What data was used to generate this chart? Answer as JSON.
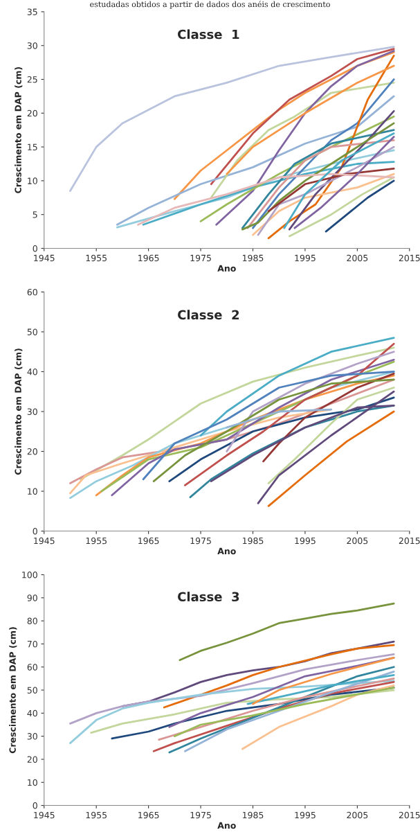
{
  "chart_data": [
    {
      "type": "line",
      "title": "Classe  1",
      "xlabel": "Ano",
      "ylabel": "Crescimento em DAP (cm)",
      "annotations": [
        "estudadas obtidos a partir de dados dos anéis de crescimento"
      ],
      "xlim": [
        1945,
        2015
      ],
      "xticks": [
        1945,
        1955,
        1965,
        1975,
        1985,
        1995,
        2005,
        2015
      ],
      "ylim": [
        0,
        35
      ],
      "yticks": [
        0,
        5,
        10,
        15,
        20,
        25,
        30,
        35
      ],
      "series": [
        {
          "color": "#b9c3de",
          "x": [
            1950,
            1955,
            1960,
            1970,
            1980,
            1990,
            2000,
            2012
          ],
          "values": [
            8.5,
            15,
            18.5,
            22.5,
            24.5,
            27,
            28.3,
            29.8
          ]
        },
        {
          "color": "#f79646",
          "x": [
            1970,
            1975,
            1980,
            1985,
            1990,
            1995,
            2005,
            2012
          ],
          "values": [
            7.3,
            11.5,
            14.5,
            17.5,
            20.5,
            23,
            27,
            29
          ]
        },
        {
          "color": "#c0504d",
          "x": [
            1977,
            1985,
            1992,
            2000,
            2005,
            2012
          ],
          "values": [
            9.5,
            17,
            22,
            25.5,
            28,
            29.5
          ]
        },
        {
          "color": "#95b3d7",
          "x": [
            1959,
            1965,
            1975,
            1985,
            1995,
            2005,
            2012
          ],
          "values": [
            3.5,
            6,
            9.5,
            12,
            15.5,
            18,
            22.5
          ]
        },
        {
          "color": "#93cddd",
          "x": [
            1959,
            1970,
            1980,
            1990,
            2000,
            2012
          ],
          "values": [
            3.1,
            5.5,
            7.5,
            10.5,
            12.5,
            14.5
          ]
        },
        {
          "color": "#4bacc6",
          "x": [
            1964,
            1975,
            1985,
            1995,
            2005,
            2012
          ],
          "values": [
            3.5,
            6.5,
            9,
            11,
            12.5,
            12.8
          ]
        },
        {
          "color": "#c3d69b",
          "x": [
            1977,
            1982,
            1988,
            1993,
            2000,
            2012
          ],
          "values": [
            7.5,
            13,
            17.5,
            19.5,
            23,
            24.5
          ]
        },
        {
          "color": "#8064a2",
          "x": [
            1978,
            1985,
            1990,
            1995,
            2000,
            2005,
            2012
          ],
          "values": [
            3.5,
            8.5,
            14.5,
            20,
            24,
            27,
            29.2
          ]
        },
        {
          "color": "#4f81bd",
          "x": [
            1985,
            1990,
            1995,
            2000,
            2005,
            2012
          ],
          "values": [
            3,
            8,
            12,
            16,
            18.5,
            25
          ]
        },
        {
          "color": "#1f497d",
          "x": [
            1999,
            2003,
            2007,
            2012
          ],
          "values": [
            2.5,
            5,
            7.5,
            10
          ]
        },
        {
          "color": "#9bbb59",
          "x": [
            1975,
            1980,
            1990,
            2000,
            2012
          ],
          "values": [
            4,
            6.5,
            11,
            15,
            19.5
          ]
        },
        {
          "color": "#e46c0a",
          "x": [
            1988,
            1992,
            1997,
            2002,
            2007,
            2012
          ],
          "values": [
            1.5,
            4,
            6.5,
            12,
            22,
            28.5
          ]
        },
        {
          "color": "#fac08f",
          "x": [
            1985,
            1990,
            1995,
            2005,
            2012
          ],
          "values": [
            2,
            5.5,
            7.5,
            9,
            11
          ]
        },
        {
          "color": "#d99694",
          "x": [
            1984,
            1990,
            1995,
            2000,
            2012
          ],
          "values": [
            3,
            9,
            13,
            15,
            16
          ]
        },
        {
          "color": "#31859c",
          "x": [
            1983,
            1988,
            1993,
            2000,
            2012
          ],
          "values": [
            3,
            8,
            12.5,
            15.5,
            17.5
          ]
        },
        {
          "color": "#604a7b",
          "x": [
            1992,
            1997,
            2002,
            2007,
            2012
          ],
          "values": [
            2.8,
            8,
            12,
            16,
            20.3
          ]
        },
        {
          "color": "#77933c",
          "x": [
            1983,
            1986,
            1990,
            1995,
            2005,
            2012
          ],
          "values": [
            2.8,
            3.8,
            7,
            10,
            15,
            18.5
          ]
        },
        {
          "color": "#b3a2c7",
          "x": [
            1986,
            1990,
            1995,
            2005,
            2012
          ],
          "values": [
            2,
            6.5,
            8,
            12,
            15
          ]
        },
        {
          "color": "#953735",
          "x": [
            1988,
            1995,
            2003,
            2012
          ],
          "values": [
            5.5,
            9.5,
            11,
            11.8
          ]
        },
        {
          "color": "#c3d69b",
          "x": [
            1992,
            2000,
            2006,
            2012
          ],
          "values": [
            1.8,
            5,
            8,
            10.5
          ]
        },
        {
          "color": "#e6b9b8",
          "x": [
            1963,
            1970,
            1980,
            1990,
            2000,
            2012
          ],
          "values": [
            3.5,
            6,
            8,
            10.5,
            11,
            10.5
          ]
        },
        {
          "color": "#f79646",
          "x": [
            1980,
            1985,
            1995,
            2005,
            2012
          ],
          "values": [
            11,
            15,
            20,
            24.5,
            27
          ]
        },
        {
          "color": "#4bacc6",
          "x": [
            1991,
            1995,
            2002,
            2012
          ],
          "values": [
            3,
            8,
            13,
            17
          ]
        },
        {
          "color": "#8064a2",
          "x": [
            1993,
            1998,
            2005,
            2012
          ],
          "values": [
            3,
            6,
            11,
            16.5
          ]
        }
      ]
    },
    {
      "type": "line",
      "title": "Classe  2",
      "xlabel": "Ano",
      "ylabel": "Crescimento em DAP (cm)",
      "xlim": [
        1945,
        2015
      ],
      "xticks": [
        1945,
        1955,
        1965,
        1975,
        1985,
        1995,
        2005,
        2015
      ],
      "ylim": [
        0,
        60
      ],
      "yticks": [
        0,
        10,
        20,
        30,
        40,
        50,
        60
      ],
      "series": [
        {
          "color": "#c3d69b",
          "x": [
            1952,
            1960,
            1965,
            1975,
            1985,
            1995,
            2005,
            2012
          ],
          "values": [
            13,
            19,
            23,
            32,
            37.5,
            41,
            44,
            46
          ]
        },
        {
          "color": "#d99694",
          "x": [
            1950,
            1955,
            1960,
            1970,
            1980,
            1990,
            2000,
            2012
          ],
          "values": [
            12,
            15.5,
            18.5,
            20.5,
            23,
            27,
            32,
            38
          ]
        },
        {
          "color": "#fac08f",
          "x": [
            1950,
            1953,
            1960,
            1970,
            1980,
            1990,
            2000
          ],
          "values": [
            9.5,
            14,
            17,
            21,
            25,
            28.5,
            30.5
          ]
        },
        {
          "color": "#93cddd",
          "x": [
            1950,
            1955,
            1962,
            1970,
            1980,
            1990,
            2000,
            2012
          ],
          "values": [
            8.3,
            12.5,
            16.5,
            22,
            26,
            30,
            36,
            40
          ]
        },
        {
          "color": "#f79646",
          "x": [
            1955,
            1960,
            1965,
            1975,
            1985,
            1995,
            2005,
            2012
          ],
          "values": [
            9,
            14,
            18.5,
            22,
            28,
            33,
            37,
            39
          ]
        },
        {
          "color": "#9bbb59",
          "x": [
            1956,
            1965,
            1975,
            1985,
            1995,
            2005,
            2012
          ],
          "values": [
            10,
            18,
            21,
            27,
            33,
            39,
            42.5
          ]
        },
        {
          "color": "#8064a2",
          "x": [
            1958,
            1965,
            1970,
            1980,
            1990,
            2000,
            2012
          ],
          "values": [
            9,
            17,
            20.5,
            23,
            31,
            38,
            43
          ]
        },
        {
          "color": "#4bacc6",
          "x": [
            1975,
            1980,
            1990,
            2000,
            2012
          ],
          "values": [
            24,
            30,
            39,
            45,
            48.5
          ]
        },
        {
          "color": "#1f497d",
          "x": [
            1969,
            1975,
            1985,
            1995,
            2005,
            2012
          ],
          "values": [
            12.5,
            18,
            25,
            28.5,
            30.5,
            33.5
          ]
        },
        {
          "color": "#31859c",
          "x": [
            1973,
            1977,
            1985,
            1995,
            2005,
            2012
          ],
          "values": [
            8.5,
            13,
            19.5,
            26,
            30,
            31.5
          ]
        },
        {
          "color": "#c0504d",
          "x": [
            1972,
            1980,
            1987,
            1995,
            2005,
            2012
          ],
          "values": [
            11.5,
            19,
            25,
            33,
            39,
            47
          ]
        },
        {
          "color": "#953735",
          "x": [
            1987,
            1990,
            1995,
            2005,
            2012
          ],
          "values": [
            17.5,
            22,
            28.5,
            36,
            39.5
          ]
        },
        {
          "color": "#c3d69b",
          "x": [
            1988,
            1993,
            2000,
            2005,
            2012
          ],
          "values": [
            12,
            18,
            27,
            33,
            36
          ]
        },
        {
          "color": "#604a7b",
          "x": [
            1986,
            1990,
            2000,
            2012
          ],
          "values": [
            7,
            14,
            24,
            35
          ]
        },
        {
          "color": "#e46c0a",
          "x": [
            1988,
            1995,
            2003,
            2012
          ],
          "values": [
            6.3,
            14,
            22.5,
            30
          ]
        },
        {
          "color": "#604a7b",
          "x": [
            1977,
            1985,
            1995,
            2005,
            2012
          ],
          "values": [
            12.5,
            19,
            26,
            31,
            31.5
          ]
        },
        {
          "color": "#b3a2c7",
          "x": [
            1980,
            1985,
            1995,
            2005,
            2012
          ],
          "values": [
            20,
            30,
            37,
            42,
            45
          ]
        },
        {
          "color": "#4f81bd",
          "x": [
            1964,
            1970,
            1980,
            1990,
            2000,
            2012
          ],
          "values": [
            13,
            22,
            28,
            36,
            39,
            40
          ]
        },
        {
          "color": "#77933c",
          "x": [
            1966,
            1972,
            1980,
            1990,
            2000,
            2012
          ],
          "values": [
            12.5,
            19,
            25,
            33,
            37,
            38
          ]
        },
        {
          "color": "#95b3d7",
          "x": [
            1980,
            1990,
            2000
          ],
          "values": [
            26,
            30,
            30.5
          ]
        }
      ]
    },
    {
      "type": "line",
      "title": "Classe  3",
      "xlabel": "Ano",
      "ylabel": "Crescimento em DAP (cm)",
      "xlim": [
        1945,
        2015
      ],
      "xticks": [
        1945,
        1955,
        1965,
        1975,
        1985,
        1995,
        2005,
        2015
      ],
      "ylim": [
        0,
        100
      ],
      "yticks": [
        0,
        10,
        20,
        30,
        40,
        50,
        60,
        70,
        80,
        90,
        100
      ],
      "series": [
        {
          "color": "#77933c",
          "x": [
            1971,
            1975,
            1980,
            1985,
            1990,
            1995,
            2000,
            2005,
            2012
          ],
          "values": [
            63,
            67,
            70.5,
            74.5,
            79,
            81,
            83,
            84.5,
            87.5
          ]
        },
        {
          "color": "#604a7b",
          "x": [
            1960,
            1965,
            1970,
            1975,
            1980,
            1985,
            1990,
            1995,
            2000,
            2005,
            2012
          ],
          "values": [
            43,
            45,
            49,
            53.5,
            56.5,
            58.5,
            60,
            62.5,
            66,
            68,
            71
          ]
        },
        {
          "color": "#e46c0a",
          "x": [
            1968,
            1975,
            1980,
            1985,
            1990,
            2000,
            2005,
            2012
          ],
          "values": [
            42.5,
            48,
            52,
            56.5,
            60,
            65.5,
            68,
            69.5
          ]
        },
        {
          "color": "#b3a2c7",
          "x": [
            1950,
            1955,
            1960,
            1965,
            1975,
            1985,
            1995,
            2005,
            2012
          ],
          "values": [
            35.5,
            40,
            43,
            45,
            47.5,
            53,
            59,
            63,
            65.5
          ]
        },
        {
          "color": "#93cddd",
          "x": [
            1950,
            1955,
            1960,
            1965,
            1975,
            1985,
            1995,
            2005,
            2012
          ],
          "values": [
            27,
            37,
            42,
            44.5,
            48,
            50.5,
            51.5,
            53,
            54
          ]
        },
        {
          "color": "#c3d69b",
          "x": [
            1954,
            1960,
            1970,
            1980,
            1990,
            2000,
            2012
          ],
          "values": [
            31.5,
            35.5,
            39.5,
            44.5,
            46,
            47,
            50
          ]
        },
        {
          "color": "#1f497d",
          "x": [
            1958,
            1965,
            1970,
            1980,
            1990,
            2000,
            2012
          ],
          "values": [
            29,
            32,
            35.5,
            41,
            44,
            48,
            51
          ]
        },
        {
          "color": "#c0504d",
          "x": [
            1966,
            1970,
            1980,
            1990,
            2000,
            2012
          ],
          "values": [
            23.5,
            27,
            34.5,
            42,
            48.5,
            53.5
          ]
        },
        {
          "color": "#31859c",
          "x": [
            1969,
            1975,
            1985,
            1995,
            2005,
            2012
          ],
          "values": [
            23,
            29,
            38,
            47,
            56,
            60
          ]
        },
        {
          "color": "#fac08f",
          "x": [
            1983,
            1990,
            2000,
            2005,
            2012
          ],
          "values": [
            24.5,
            34,
            43,
            48,
            52
          ]
        },
        {
          "color": "#d99694",
          "x": [
            1967,
            1975,
            1985,
            1995,
            2012
          ],
          "values": [
            28.5,
            34,
            41,
            47,
            55
          ]
        },
        {
          "color": "#8064a2",
          "x": [
            1969,
            1975,
            1985,
            1995,
            2005,
            2012
          ],
          "values": [
            34,
            40,
            47,
            56,
            60.5,
            64
          ]
        },
        {
          "color": "#95b3d7",
          "x": [
            1972,
            1980,
            1990,
            2000,
            2012
          ],
          "values": [
            23.5,
            33,
            41,
            49,
            58
          ]
        },
        {
          "color": "#4bacc6",
          "x": [
            1984,
            1990,
            2000,
            2012
          ],
          "values": [
            44,
            47,
            52,
            56.5
          ]
        },
        {
          "color": "#9bbb59",
          "x": [
            1970,
            1975,
            1985,
            1995,
            2012
          ],
          "values": [
            30,
            35,
            39,
            44,
            51
          ]
        },
        {
          "color": "#f79646",
          "x": [
            1985,
            1990,
            2000,
            2012
          ],
          "values": [
            44,
            50,
            57,
            64
          ]
        }
      ]
    }
  ]
}
